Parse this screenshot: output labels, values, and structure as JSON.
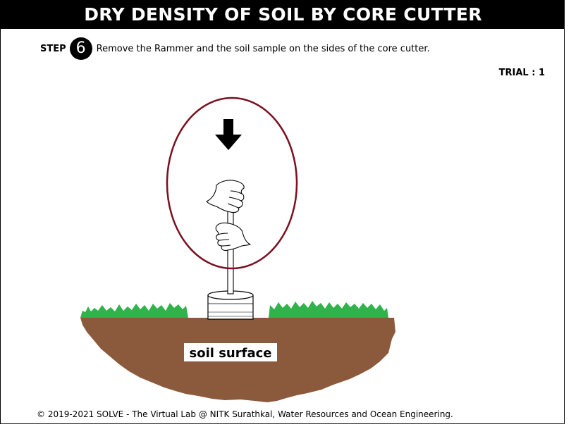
{
  "header": {
    "title": "DRY DENSITY OF SOIL BY CORE CUTTER"
  },
  "step": {
    "label": "STEP",
    "number": "6",
    "instruction": "Remove the Rammer and the soil sample on the sides of the core cutter."
  },
  "trial": {
    "label": "TRIAL : 1"
  },
  "illustration": {
    "soil_label": "soil surface",
    "colors": {
      "soil": "#8b5a3c",
      "grass": "#2fb34a",
      "highlight_ellipse": "#7a1020",
      "arrow": "#000000"
    },
    "icons": [
      "down-arrow-icon",
      "hand-icon",
      "rammer-rod",
      "core-cutter"
    ]
  },
  "footer": {
    "copyright": "© 2019-2021 SOLVE - The Virtual Lab @ NITK Surathkal, Water Resources and Ocean Engineering."
  }
}
